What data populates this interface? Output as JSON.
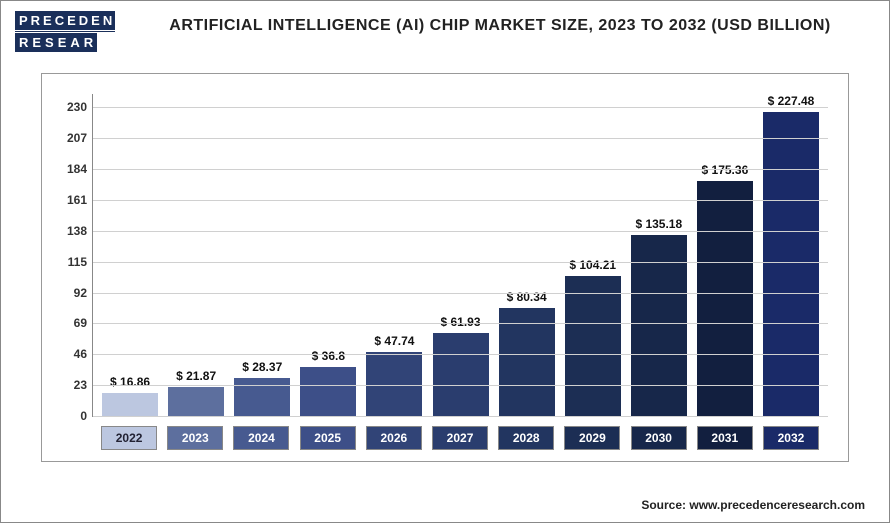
{
  "logo": {
    "line1": "PRECEDENCE",
    "line2": "RESEARCH"
  },
  "title": "ARTIFICIAL INTELLIGENCE (AI) CHIP MARKET SIZE, 2023 TO 2032 (USD BILLION)",
  "source": "Source: www.precedenceresearch.com",
  "chart": {
    "type": "bar",
    "categories": [
      "2022",
      "2023",
      "2024",
      "2025",
      "2026",
      "2027",
      "2028",
      "2029",
      "2030",
      "2031",
      "2032"
    ],
    "values": [
      16.86,
      21.87,
      28.37,
      36.8,
      47.74,
      61.93,
      80.34,
      104.21,
      135.18,
      175.36,
      227.48
    ],
    "value_labels": [
      "$ 16.86",
      "$ 21.87",
      "$ 28.37",
      "$ 36.8",
      "$ 47.74",
      "$ 61.93",
      "$ 80.34",
      "$ 104.21",
      "$ 135.18",
      "$ 175.36",
      "$ 227.48"
    ],
    "bar_colors": [
      "#bcc7e0",
      "#5d6f9e",
      "#475a90",
      "#3d4f88",
      "#314477",
      "#2a3d6e",
      "#223560",
      "#1c2e54",
      "#17274a",
      "#121f3f",
      "#1a2a68"
    ],
    "x_label_colors": [
      "#bcc7e0",
      "#5d6f9e",
      "#475a90",
      "#3d4f88",
      "#314477",
      "#2a3d6e",
      "#223560",
      "#1c2e54",
      "#17274a",
      "#121f3f",
      "#1a2a68"
    ],
    "x_label_text_colors": [
      "#223",
      "#fff",
      "#fff",
      "#fff",
      "#fff",
      "#fff",
      "#fff",
      "#fff",
      "#fff",
      "#fff",
      "#fff"
    ],
    "y_ticks": [
      0,
      23,
      46,
      69,
      92,
      115,
      138,
      161,
      184,
      207,
      230
    ],
    "ylim": [
      0,
      230
    ],
    "ymax_plot": 240,
    "background_color": "#ffffff",
    "grid_color": "#d0d0d0",
    "value_fontsize": 12,
    "axis_fontsize": 12,
    "title_fontsize": 16,
    "bar_width": 0.75
  }
}
